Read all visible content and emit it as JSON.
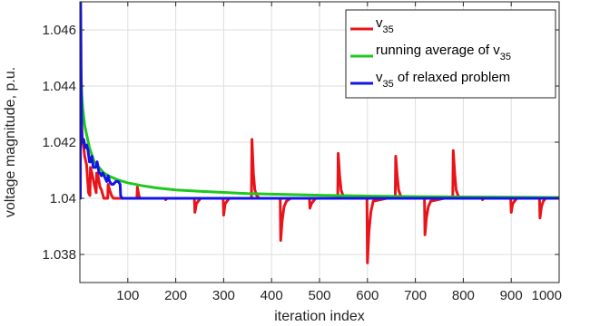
{
  "chart_data": {
    "type": "line",
    "xlabel": "iteration index",
    "ylabel": "voltage magnitude, p.u.",
    "xlim": [
      0,
      1000
    ],
    "ylim": [
      1.037,
      1.047
    ],
    "xticks": [
      100,
      200,
      300,
      400,
      500,
      600,
      700,
      800,
      900,
      1000
    ],
    "xtick_labels": [
      "100",
      "200",
      "300",
      "400",
      "500",
      "600",
      "700",
      "800",
      "900",
      "1000"
    ],
    "yticks": [
      1.038,
      1.04,
      1.042,
      1.044,
      1.046
    ],
    "ytick_labels": [
      "1.038",
      "1.04",
      "1.042",
      "1.044",
      "1.046"
    ],
    "grid": true,
    "legend_position": "top-right",
    "series": [
      {
        "name_main": "v",
        "name_sub": "35",
        "name_rest": "",
        "color": "#e8141a",
        "x": [
          1,
          2,
          3,
          5,
          8,
          10,
          14,
          18,
          21,
          22,
          25,
          30,
          34,
          35,
          38,
          42,
          45,
          50,
          55,
          58,
          59,
          62,
          66,
          70,
          80,
          100,
          119,
          120,
          123,
          126,
          130,
          150,
          178,
          179,
          182,
          186,
          190,
          220,
          239,
          240,
          243,
          247,
          252,
          270,
          299,
          300,
          303,
          307,
          312,
          330,
          358,
          359,
          362,
          365,
          369,
          374,
          380,
          400,
          418,
          419,
          422,
          426,
          431,
          440,
          460,
          479,
          480,
          483,
          487,
          492,
          520,
          538,
          539,
          542,
          545,
          549,
          554,
          560,
          580,
          599,
          600,
          603,
          607,
          612,
          640,
          658,
          659,
          662,
          665,
          669,
          674,
          680,
          700,
          719,
          720,
          723,
          727,
          732,
          760,
          778,
          779,
          782,
          785,
          789,
          794,
          800,
          820,
          839,
          840,
          843,
          847,
          852,
          880,
          899,
          900,
          903,
          907,
          912,
          940,
          959,
          960,
          963,
          967,
          972,
          1000
        ],
        "y": [
          1.047,
          1.0445,
          1.043,
          1.0421,
          1.0418,
          1.0415,
          1.0412,
          1.0402,
          1.0401,
          1.0411,
          1.0409,
          1.0405,
          1.0402,
          1.0409,
          1.0408,
          1.0404,
          1.0403,
          1.04,
          1.04,
          1.04,
          1.0405,
          1.0403,
          1.0401,
          1.04,
          1.04,
          1.04,
          1.04,
          1.0404,
          1.0401,
          1.04,
          1.04,
          1.04,
          1.04,
          1.03995,
          1.04,
          1.04,
          1.04,
          1.04,
          1.04,
          1.0395,
          1.0398,
          1.0399,
          1.04,
          1.04,
          1.04,
          1.0394,
          1.0398,
          1.0399,
          1.04,
          1.04,
          1.04,
          1.0421,
          1.0409,
          1.0403,
          1.0401,
          1.04,
          1.04,
          1.04,
          1.04,
          1.0385,
          1.0392,
          1.0397,
          1.0399,
          1.04,
          1.04,
          1.04,
          1.03965,
          1.0398,
          1.0399,
          1.04,
          1.04,
          1.04,
          1.0416,
          1.0408,
          1.0403,
          1.0401,
          1.04,
          1.04,
          1.04,
          1.04,
          1.0377,
          1.0388,
          1.0395,
          1.0399,
          1.04,
          1.04,
          1.0415,
          1.0408,
          1.0403,
          1.0401,
          1.04,
          1.04,
          1.04,
          1.04,
          1.0387,
          1.0393,
          1.0397,
          1.0399,
          1.04,
          1.04,
          1.0417,
          1.0409,
          1.0403,
          1.0401,
          1.04,
          1.04,
          1.04,
          1.04,
          1.03995,
          1.04,
          1.04,
          1.04,
          1.04,
          1.04,
          1.0395,
          1.0398,
          1.0399,
          1.04,
          1.04,
          1.04,
          1.0393,
          1.0397,
          1.0399,
          1.04,
          1.04
        ]
      },
      {
        "name_main": "running average of v",
        "name_sub": "35",
        "name_rest": "",
        "color": "#1ec81e",
        "x": [
          1,
          2,
          4,
          6,
          10,
          15,
          20,
          30,
          40,
          50,
          60,
          80,
          100,
          130,
          160,
          200,
          250,
          300,
          350,
          400,
          500,
          600,
          700,
          800,
          900,
          1000
        ],
        "y": [
          1.047,
          1.0446,
          1.0437,
          1.0432,
          1.0426,
          1.0422,
          1.0418,
          1.0413,
          1.0411,
          1.0409,
          1.0408,
          1.04065,
          1.04055,
          1.04045,
          1.04037,
          1.0403,
          1.04025,
          1.04021,
          1.04017,
          1.04015,
          1.04011,
          1.04008,
          1.04006,
          1.04005,
          1.04004,
          1.04003
        ]
      },
      {
        "name_main": "v",
        "name_sub": "35",
        "name_rest": " of relaxed problem",
        "color": "#1414e8",
        "x": [
          1,
          1.5,
          2,
          3,
          4,
          5,
          8,
          11,
          14,
          17,
          20,
          22,
          25,
          28,
          33,
          36,
          40,
          42,
          45,
          48,
          56,
          59,
          62,
          66,
          70,
          75,
          80,
          84,
          85,
          88,
          92,
          100,
          150,
          200,
          300,
          500,
          700,
          1000
        ],
        "y": [
          1.04,
          1.047,
          1.046,
          1.0435,
          1.0422,
          1.042,
          1.0421,
          1.0418,
          1.0419,
          1.0417,
          1.0413,
          1.0413,
          1.0415,
          1.0411,
          1.0411,
          1.0413,
          1.0409,
          1.0409,
          1.0408,
          1.0409,
          1.0406,
          1.0408,
          1.0406,
          1.0405,
          1.0405,
          1.0406,
          1.0406,
          1.0405,
          1.0401,
          1.04,
          1.04,
          1.04,
          1.04,
          1.04,
          1.04,
          1.04,
          1.04,
          1.04
        ]
      }
    ]
  }
}
